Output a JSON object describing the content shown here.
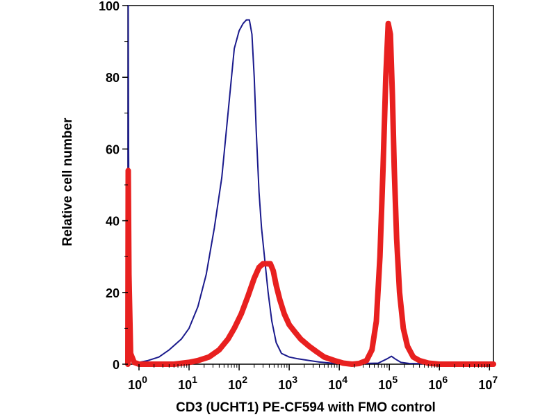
{
  "chart_data": {
    "type": "line",
    "title": "",
    "xlabel": "CD3 (UCHT1) PE-CF594 with FMO control",
    "ylabel": "Relative cell number",
    "x_scale": "log",
    "xlim": [
      0.6,
      12000000
    ],
    "ylim": [
      0,
      100
    ],
    "x_ticks": [
      {
        "value": 1,
        "base": "10",
        "exp": "0"
      },
      {
        "value": 10,
        "base": "10",
        "exp": "1"
      },
      {
        "value": 100,
        "base": "10",
        "exp": "2"
      },
      {
        "value": 1000,
        "base": "10",
        "exp": "3"
      },
      {
        "value": 10000,
        "base": "10",
        "exp": "4"
      },
      {
        "value": 100000,
        "base": "10",
        "exp": "5"
      },
      {
        "value": 1000000,
        "base": "10",
        "exp": "6"
      },
      {
        "value": 10000000,
        "base": "10",
        "exp": "7"
      }
    ],
    "y_ticks": [
      "0",
      "20",
      "40",
      "60",
      "80",
      "100"
    ],
    "grid": false,
    "legend": "none",
    "series": [
      {
        "color": "#1a1a8c",
        "line_width": "thin",
        "x": [
          0.6,
          0.61,
          0.62,
          0.65,
          0.7,
          1,
          1.5,
          2.5,
          4,
          7,
          10,
          15,
          22,
          32,
          45,
          60,
          80,
          100,
          120,
          140,
          160,
          180,
          200,
          220,
          250,
          280,
          320,
          380,
          450,
          550,
          700,
          1000,
          1500,
          2500,
          4000,
          7000,
          15000,
          30000,
          60000,
          90000,
          110000,
          130000,
          170000,
          250000,
          600000,
          1000000,
          3000000,
          10000000,
          12000000
        ],
        "y": [
          0,
          100,
          60,
          10,
          1,
          0.5,
          1,
          2,
          4,
          7,
          10,
          16,
          25,
          38,
          52,
          70,
          88,
          93,
          95,
          96,
          96,
          92,
          80,
          65,
          48,
          38,
          30,
          20,
          12,
          6,
          3,
          2,
          1.5,
          1,
          0.6,
          0.3,
          0.2,
          0.2,
          0.3,
          1.5,
          2.2,
          1.5,
          0.5,
          0.2,
          0.1,
          0,
          0,
          0,
          0
        ]
      },
      {
        "color": "#e8201f",
        "line_width": "thick",
        "x": [
          0.6,
          0.61,
          0.63,
          0.68,
          0.8,
          1,
          2,
          5,
          10,
          15,
          25,
          40,
          60,
          80,
          110,
          150,
          200,
          250,
          300,
          350,
          420,
          480,
          550,
          650,
          800,
          1000,
          1300,
          1700,
          2500,
          3500,
          5000,
          8000,
          12000,
          18000,
          25000,
          35000,
          45000,
          55000,
          65000,
          75000,
          85000,
          95000,
          105000,
          115000,
          125000,
          140000,
          160000,
          190000,
          230000,
          300000,
          400000,
          600000,
          1000000,
          2000000,
          5000000,
          12000000
        ],
        "y": [
          0,
          54,
          25,
          3,
          0.5,
          0,
          0,
          0,
          0.5,
          1,
          2,
          4,
          7,
          10,
          14,
          19,
          24,
          27,
          28,
          28,
          28,
          26,
          22,
          18,
          14,
          11,
          9,
          7,
          5,
          3.5,
          2,
          1,
          0.3,
          0,
          0.2,
          1,
          4,
          12,
          30,
          55,
          80,
          95,
          92,
          75,
          55,
          35,
          20,
          10,
          5,
          2,
          1,
          0.3,
          0,
          0,
          0,
          0
        ]
      }
    ]
  }
}
